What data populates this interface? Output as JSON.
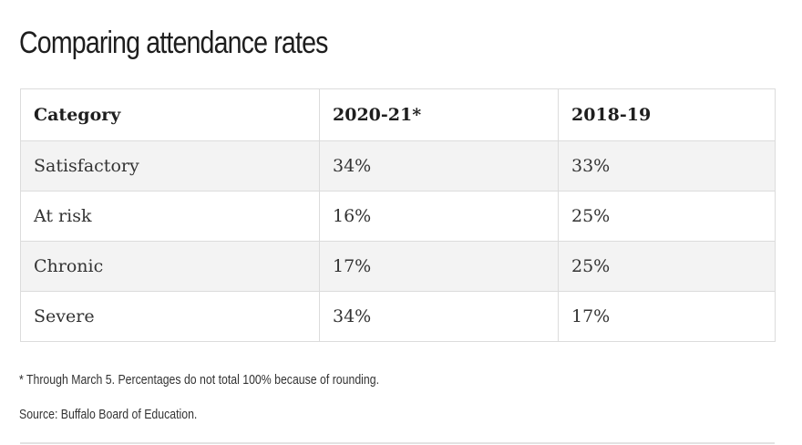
{
  "chart_data": {
    "type": "table",
    "title": "Comparing attendance rates",
    "columns": [
      "Category",
      "2020-21*",
      "2018-19"
    ],
    "rows": [
      {
        "category": "Satisfactory",
        "y2020_21": "34%",
        "y2018_19": "33%"
      },
      {
        "category": "At risk",
        "y2020_21": "16%",
        "y2018_19": "25%"
      },
      {
        "category": "Chronic",
        "y2020_21": "17%",
        "y2018_19": "25%"
      },
      {
        "category": "Severe",
        "y2020_21": "34%",
        "y2018_19": "17%"
      }
    ],
    "footnote": "* Through March 5. Percentages do not total 100% because of rounding.",
    "source": "Source: Buffalo Board of Education."
  },
  "colors": {
    "row_shade": "#f3f3f3",
    "border": "#dcdcdc",
    "text": "#222222"
  }
}
